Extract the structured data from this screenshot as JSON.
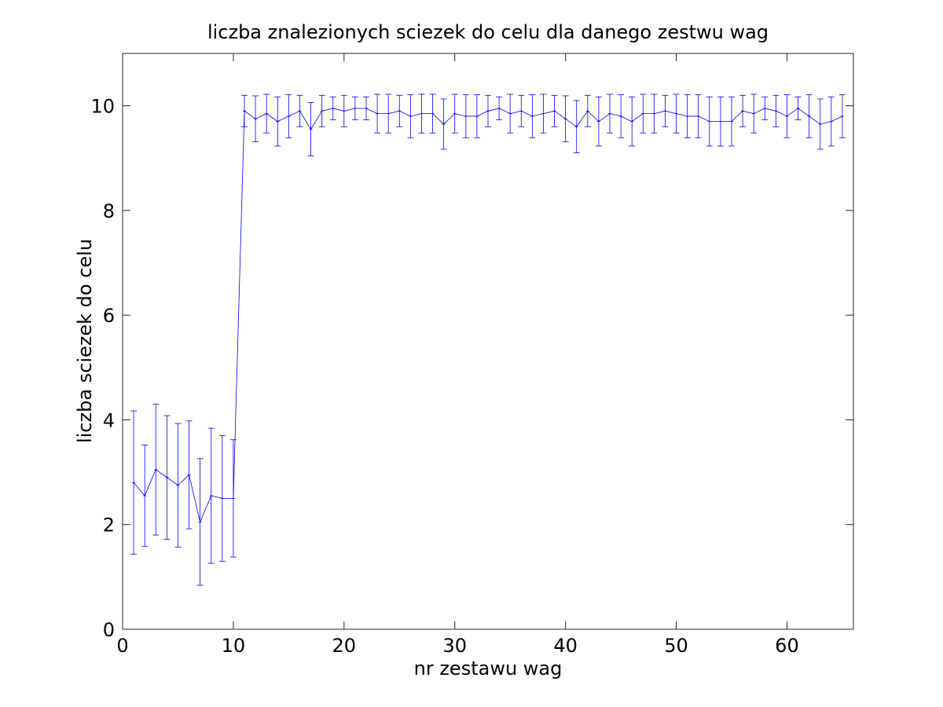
{
  "chart_data": {
    "type": "line",
    "title": "liczba znalezionych sciezek do celu dla danego zestwu wag",
    "xlabel": "nr zestawu wag",
    "ylabel": "liczba sciezek do celu",
    "xlim": [
      0,
      66
    ],
    "ylim": [
      0,
      11
    ],
    "xticks": [
      0,
      10,
      20,
      30,
      40,
      50,
      60
    ],
    "yticks": [
      0,
      2,
      4,
      6,
      8,
      10
    ],
    "grid": false,
    "series_color": "#0000ff",
    "series": [
      {
        "x": [
          1,
          2,
          3,
          4,
          5,
          6,
          7,
          8,
          9,
          10,
          11,
          12,
          13,
          14,
          15,
          16,
          17,
          18,
          19,
          20,
          21,
          22,
          23,
          24,
          25,
          26,
          27,
          28,
          29,
          30,
          31,
          32,
          33,
          34,
          35,
          36,
          37,
          38,
          39,
          40,
          41,
          42,
          43,
          44,
          45,
          46,
          47,
          48,
          49,
          50,
          51,
          52,
          53,
          54,
          55,
          56,
          57,
          58,
          59,
          60,
          61,
          62,
          63,
          64,
          65
        ],
        "y": [
          2.8,
          2.55,
          3.05,
          2.9,
          2.75,
          2.95,
          2.05,
          2.55,
          2.5,
          2.5,
          9.9,
          9.75,
          9.85,
          9.7,
          9.8,
          9.9,
          9.55,
          9.9,
          9.95,
          9.9,
          9.95,
          9.95,
          9.85,
          9.85,
          9.9,
          9.8,
          9.85,
          9.85,
          9.65,
          9.85,
          9.8,
          9.8,
          9.9,
          9.95,
          9.85,
          9.9,
          9.8,
          9.85,
          9.9,
          9.75,
          9.6,
          9.9,
          9.7,
          9.85,
          9.8,
          9.7,
          9.85,
          9.85,
          9.9,
          9.85,
          9.8,
          9.8,
          9.7,
          9.7,
          9.7,
          9.9,
          9.85,
          9.95,
          9.9,
          9.8,
          9.95,
          9.8,
          9.65,
          9.7,
          9.8
        ],
        "err": [
          1.37,
          0.97,
          1.25,
          1.18,
          1.18,
          1.03,
          1.21,
          1.29,
          1.2,
          1.12,
          0.3,
          0.44,
          0.37,
          0.47,
          0.41,
          0.3,
          0.51,
          0.3,
          0.22,
          0.3,
          0.22,
          0.22,
          0.37,
          0.37,
          0.3,
          0.41,
          0.37,
          0.37,
          0.48,
          0.37,
          0.41,
          0.41,
          0.3,
          0.22,
          0.37,
          0.3,
          0.41,
          0.37,
          0.3,
          0.44,
          0.5,
          0.3,
          0.47,
          0.37,
          0.41,
          0.47,
          0.37,
          0.37,
          0.3,
          0.37,
          0.41,
          0.41,
          0.47,
          0.47,
          0.47,
          0.3,
          0.37,
          0.22,
          0.3,
          0.41,
          0.22,
          0.41,
          0.48,
          0.47,
          0.41
        ]
      }
    ]
  }
}
